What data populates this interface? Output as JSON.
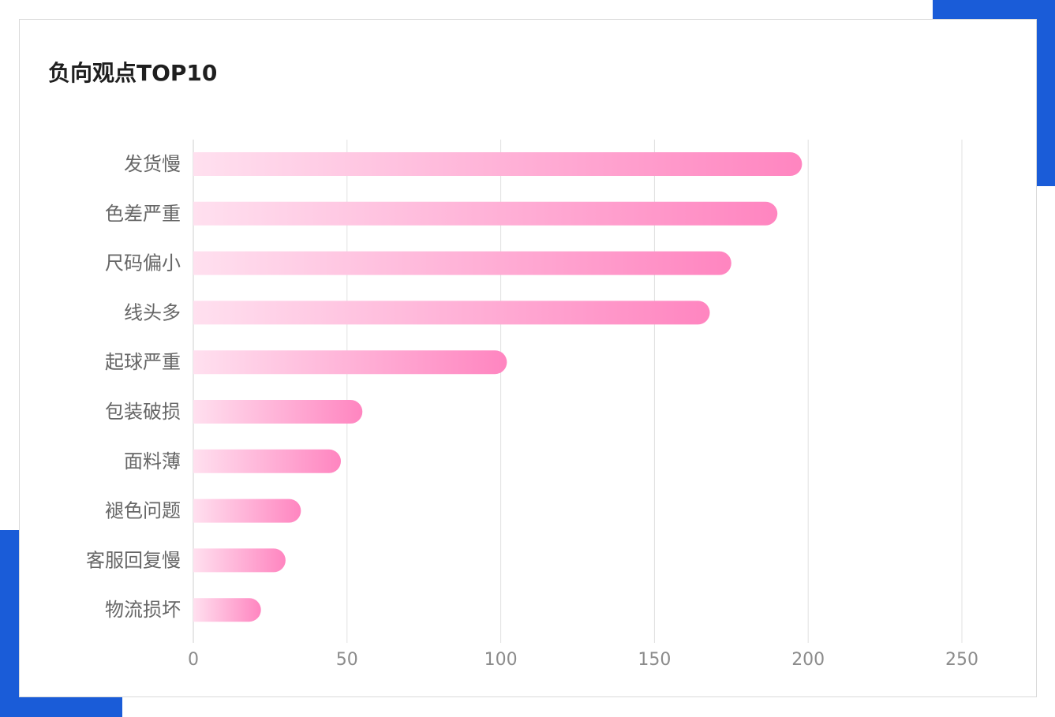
{
  "colors": {
    "accent": "#1a5cd8",
    "bar_start": "#ffe0ef",
    "bar_end": "#ff85c0",
    "grid": "#e0e0e0",
    "axis": "#cfcfcf"
  },
  "card": {
    "title": "负向观点TOP10"
  },
  "chart_data": {
    "type": "bar",
    "orientation": "horizontal",
    "title": "负向观点TOP10",
    "categories": [
      "发货慢",
      "色差严重",
      "尺码偏小",
      "线头多",
      "起球严重",
      "包装破损",
      "面料薄",
      "褪色问题",
      "客服回复慢",
      "物流损坏"
    ],
    "values": [
      198,
      190,
      175,
      168,
      102,
      55,
      48,
      35,
      30,
      22
    ],
    "xlim": [
      0,
      250
    ],
    "xticks": [
      "0",
      "50",
      "100",
      "150",
      "200",
      "250"
    ],
    "xlabel": "",
    "ylabel": "",
    "grid": "vertical",
    "legend": "none"
  }
}
